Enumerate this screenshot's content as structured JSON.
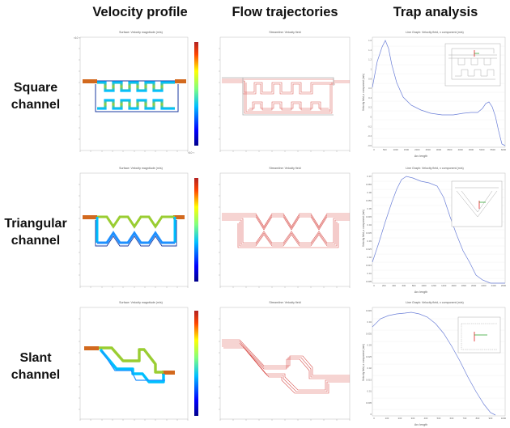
{
  "columns": [
    "Velocity profile",
    "Flow trajectories",
    "Trap analysis"
  ],
  "rows": [
    {
      "line1": "Square",
      "line2": "channel"
    },
    {
      "line1": "Triangular",
      "line2": "channel"
    },
    {
      "line1": "Slant",
      "line2": "channel"
    }
  ],
  "panel_titles": {
    "velocity": "Surface: Velocity magnitude (m/s)",
    "streamline": "Streamline: Velocity field",
    "line_graph": "Line Graph: Velocity field, x component (m/s)"
  },
  "axis_labels": {
    "arc_length": "Arc length",
    "velocity_x": "Velocity field, x component (m/s)"
  },
  "colors": {
    "jet_high": "#b22222",
    "jet_low": "#00008b",
    "streamline": "#d9534f",
    "line_graph": "#6b7fd7"
  },
  "square_trap": {
    "x_ticks": [
      "0",
      "500",
      "1000",
      "1500",
      "2000",
      "2500",
      "3000",
      "3500",
      "4000",
      "4500",
      "5000",
      "5500",
      "6000"
    ],
    "y_ticks": [
      "1.6",
      "1.4",
      "1.2",
      "1",
      "0.8",
      "0.6",
      "0.4",
      "0.2",
      "0",
      "-0.2",
      "-0.4",
      "-0.6"
    ]
  },
  "triangular_trap": {
    "x_ticks": [
      "0",
      "200",
      "400",
      "600",
      "800",
      "1000",
      "1200",
      "1400",
      "1600",
      "1800",
      "2000",
      "2200",
      "2400",
      "2600"
    ],
    "y_ticks": [
      "0.07",
      "0.065",
      "0.06",
      "0.055",
      "0.05",
      "0.045",
      "0.04",
      "0.035",
      "0.03",
      "0.025",
      "0.02",
      "0.015",
      "0.01",
      "0.005"
    ]
  },
  "slant_trap": {
    "x_ticks": [
      "0",
      "100",
      "200",
      "300",
      "400",
      "500",
      "600",
      "700",
      "800",
      "900",
      "1000"
    ],
    "y_ticks": [
      "0.045",
      "0.04",
      "0.035",
      "0.03",
      "0.025",
      "0.02",
      "0.015",
      "0.01",
      "0.005",
      "0"
    ]
  }
}
